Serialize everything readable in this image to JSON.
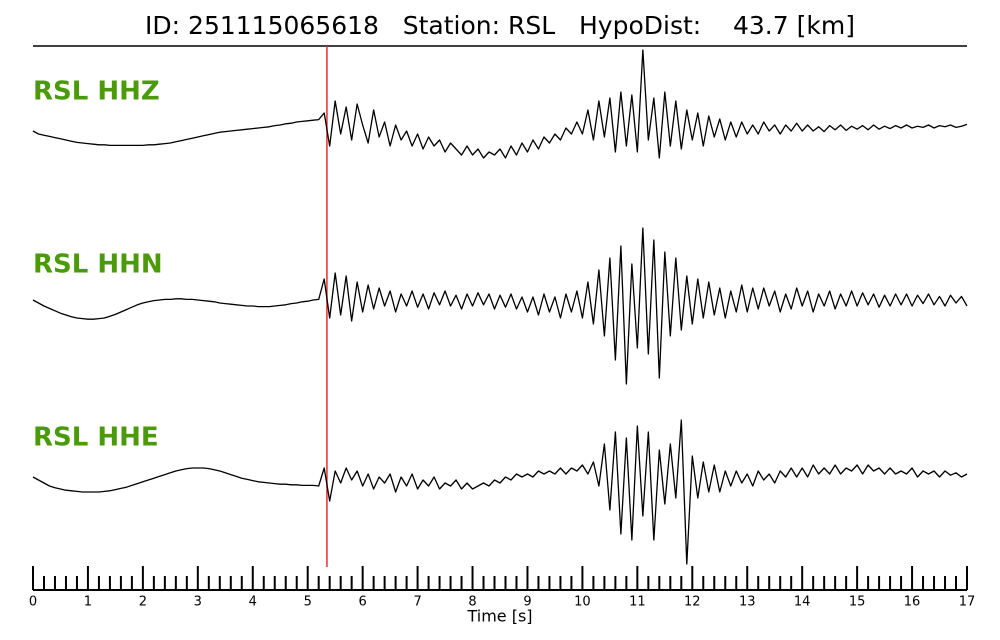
{
  "chart_data": {
    "type": "line",
    "title": "ID: 251115065618   Station: RSL   HypoDist:    43.7 [km]",
    "xlabel": "Time [s]",
    "xlim": [
      0,
      17
    ],
    "xticks": [
      0,
      1,
      2,
      3,
      4,
      5,
      6,
      7,
      8,
      9,
      10,
      11,
      12,
      13,
      14,
      15,
      16,
      17
    ],
    "xminorticks": [
      0.2,
      0.4,
      0.6,
      0.8,
      1.2,
      1.4,
      1.6,
      1.8,
      2.2,
      2.4,
      2.6,
      2.8,
      3.2,
      3.4,
      3.6,
      3.8,
      4.2,
      4.4,
      4.6,
      4.8,
      5.2,
      5.4,
      5.6,
      5.8,
      6.2,
      6.4,
      6.6,
      6.8,
      7.2,
      7.4,
      7.6,
      7.8,
      8.2,
      8.4,
      8.6,
      8.8,
      9.2,
      9.4,
      9.6,
      9.8,
      10.2,
      10.4,
      10.6,
      10.8,
      11.2,
      11.4,
      11.6,
      11.8,
      12.2,
      12.4,
      12.6,
      12.8,
      13.2,
      13.4,
      13.6,
      13.8,
      14.2,
      14.4,
      14.6,
      14.8,
      15.2,
      15.4,
      15.6,
      15.8,
      16.2,
      16.4,
      16.6,
      16.8
    ],
    "pick": {
      "value": 5.35,
      "color": "#e8302a"
    },
    "label_color": "#4a9a0a",
    "x": [
      0,
      0.1,
      0.2,
      0.3,
      0.4,
      0.5,
      0.6,
      0.7,
      0.8,
      0.9,
      1,
      1.1,
      1.2,
      1.3,
      1.4,
      1.5,
      1.6,
      1.7,
      1.8,
      1.9,
      2,
      2.1,
      2.2,
      2.3,
      2.4,
      2.5,
      2.6,
      2.7,
      2.8,
      2.9,
      3,
      3.1,
      3.2,
      3.3,
      3.4,
      3.5,
      3.6,
      3.7,
      3.8,
      3.9,
      4,
      4.1,
      4.2,
      4.3,
      4.4,
      4.5,
      4.6,
      4.7,
      4.8,
      4.9,
      5,
      5.1,
      5.2,
      5.3,
      5.4,
      5.5,
      5.6,
      5.7,
      5.8,
      5.9,
      6,
      6.1,
      6.2,
      6.3,
      6.4,
      6.5,
      6.6,
      6.7,
      6.8,
      6.9,
      7,
      7.1,
      7.2,
      7.3,
      7.4,
      7.5,
      7.6,
      7.7,
      7.8,
      7.9,
      8,
      8.1,
      8.2,
      8.3,
      8.4,
      8.5,
      8.6,
      8.7,
      8.8,
      8.9,
      9,
      9.1,
      9.2,
      9.3,
      9.4,
      9.5,
      9.6,
      9.7,
      9.8,
      9.9,
      10,
      10.1,
      10.2,
      10.3,
      10.4,
      10.5,
      10.6,
      10.7,
      10.8,
      10.9,
      11,
      11.1,
      11.2,
      11.3,
      11.4,
      11.5,
      11.6,
      11.7,
      11.8,
      11.9,
      12,
      12.1,
      12.2,
      12.3,
      12.4,
      12.5,
      12.6,
      12.7,
      12.8,
      12.9,
      13,
      13.1,
      13.2,
      13.3,
      13.4,
      13.5,
      13.6,
      13.7,
      13.8,
      13.9,
      14,
      14.1,
      14.2,
      14.3,
      14.4,
      14.5,
      14.6,
      14.7,
      14.8,
      14.9,
      15,
      15.1,
      15.2,
      15.3,
      15.4,
      15.5,
      15.6,
      15.7,
      15.8,
      15.9,
      16,
      16.1,
      16.2,
      16.3,
      16.4,
      16.5,
      16.6,
      16.7,
      16.8,
      16.9,
      17
    ],
    "series": [
      {
        "name": "RSL HHZ",
        "color": "#000000",
        "ylim": [
          -1.5,
          1.5
        ],
        "values": [
          -0.05,
          -0.1,
          -0.12,
          -0.14,
          -0.16,
          -0.18,
          -0.2,
          -0.22,
          -0.24,
          -0.25,
          -0.26,
          -0.27,
          -0.28,
          -0.28,
          -0.29,
          -0.29,
          -0.29,
          -0.29,
          -0.29,
          -0.29,
          -0.29,
          -0.28,
          -0.28,
          -0.27,
          -0.26,
          -0.25,
          -0.23,
          -0.21,
          -0.19,
          -0.17,
          -0.15,
          -0.13,
          -0.11,
          -0.09,
          -0.07,
          -0.06,
          -0.05,
          -0.04,
          -0.03,
          -0.02,
          -0.01,
          0,
          0.01,
          0.02,
          0.04,
          0.05,
          0.07,
          0.08,
          0.1,
          0.11,
          0.12,
          0.13,
          0.14,
          0.25,
          -0.3,
          0.45,
          -0.1,
          0.35,
          -0.2,
          0.4,
          0.05,
          -0.25,
          0.3,
          -0.15,
          0.1,
          -0.3,
          0.05,
          -0.2,
          -0.05,
          -0.3,
          -0.1,
          -0.35,
          -0.15,
          -0.3,
          -0.2,
          -0.4,
          -0.25,
          -0.35,
          -0.45,
          -0.3,
          -0.45,
          -0.35,
          -0.5,
          -0.4,
          -0.45,
          -0.35,
          -0.5,
          -0.3,
          -0.45,
          -0.25,
          -0.4,
          -0.2,
          -0.35,
          -0.15,
          -0.25,
          -0.1,
          -0.2,
          0,
          -0.1,
          0.1,
          -0.1,
          0.3,
          -0.2,
          0.45,
          -0.15,
          0.5,
          -0.4,
          0.6,
          -0.3,
          0.55,
          -0.4,
          1.3,
          -0.2,
          0.5,
          -0.5,
          0.6,
          -0.3,
          0.45,
          -0.35,
          0.3,
          -0.2,
          0.25,
          -0.3,
          0.2,
          -0.15,
          0.15,
          -0.2,
          0.1,
          -0.15,
          0.1,
          -0.1,
          0.05,
          -0.1,
          0.1,
          -0.05,
          0.05,
          -0.1,
          0.05,
          -0.05,
          0.08,
          -0.05,
          0.05,
          -0.05,
          0.02,
          -0.06,
          0.04,
          -0.03,
          0.05,
          -0.04,
          0.03,
          -0.02,
          0.04,
          -0.03,
          0.05,
          -0.02,
          0.03,
          -0.01,
          0.04,
          0,
          0.05,
          0,
          0.03,
          0.01,
          0.05,
          0,
          0.04,
          0.02,
          0.05,
          0.01,
          0.03,
          0.06
        ]
      },
      {
        "name": "RSL HHN",
        "color": "#000000",
        "ylim": [
          -1.5,
          1.5
        ],
        "values": [
          0,
          -0.05,
          -0.1,
          -0.14,
          -0.18,
          -0.22,
          -0.25,
          -0.28,
          -0.3,
          -0.31,
          -0.32,
          -0.32,
          -0.31,
          -0.3,
          -0.27,
          -0.24,
          -0.2,
          -0.16,
          -0.12,
          -0.08,
          -0.05,
          -0.03,
          -0.01,
          0,
          0.01,
          0.01,
          0.02,
          0.02,
          0.01,
          0.01,
          0,
          -0.01,
          -0.02,
          -0.03,
          -0.05,
          -0.06,
          -0.07,
          -0.08,
          -0.09,
          -0.1,
          -0.1,
          -0.11,
          -0.11,
          -0.11,
          -0.1,
          -0.09,
          -0.08,
          -0.06,
          -0.05,
          -0.03,
          -0.02,
          0,
          0.01,
          0.35,
          -0.3,
          0.45,
          -0.25,
          0.4,
          -0.35,
          0.3,
          -0.2,
          0.25,
          -0.15,
          0.2,
          -0.1,
          0.15,
          -0.2,
          0.1,
          -0.1,
          0.15,
          -0.12,
          0.1,
          -0.15,
          0.12,
          -0.08,
          0.15,
          -0.1,
          0.08,
          -0.15,
          0.1,
          -0.1,
          0.12,
          -0.08,
          0.1,
          -0.15,
          0.08,
          -0.12,
          0.1,
          -0.15,
          0.05,
          -0.2,
          0.05,
          -0.25,
          0.1,
          -0.2,
          0.05,
          -0.3,
          0.1,
          -0.2,
          0.15,
          -0.3,
          0.3,
          -0.4,
          0.5,
          -0.6,
          0.7,
          -1,
          0.9,
          -1.4,
          0.6,
          -0.8,
          1.2,
          -0.9,
          1,
          -1.3,
          0.8,
          -0.6,
          0.7,
          -0.5,
          0.4,
          -0.4,
          0.35,
          -0.3,
          0.3,
          -0.25,
          0.2,
          -0.3,
          0.15,
          -0.2,
          0.25,
          -0.2,
          0.2,
          -0.15,
          0.2,
          -0.1,
          0.15,
          -0.2,
          0.1,
          -0.15,
          0.2,
          -0.1,
          0.15,
          -0.2,
          0.1,
          -0.1,
          0.15,
          -0.15,
          0.1,
          -0.1,
          0.15,
          -0.1,
          0.12,
          -0.08,
          0.1,
          -0.12,
          0.08,
          -0.1,
          0.1,
          -0.08,
          0.1,
          -0.1,
          0.08,
          -0.06,
          0.1,
          -0.08,
          0.06,
          -0.1,
          0.08,
          -0.05,
          0.06,
          -0.1
        ]
      },
      {
        "name": "RSL HHE",
        "color": "#000000",
        "ylim": [
          -1.5,
          1.5
        ],
        "values": [
          0.05,
          0,
          -0.05,
          -0.1,
          -0.13,
          -0.15,
          -0.17,
          -0.18,
          -0.19,
          -0.2,
          -0.2,
          -0.2,
          -0.2,
          -0.19,
          -0.18,
          -0.16,
          -0.14,
          -0.12,
          -0.09,
          -0.06,
          -0.03,
          0,
          0.03,
          0.06,
          0.09,
          0.12,
          0.15,
          0.17,
          0.19,
          0.2,
          0.2,
          0.2,
          0.19,
          0.17,
          0.15,
          0.12,
          0.09,
          0.06,
          0.03,
          0.01,
          -0.01,
          -0.03,
          -0.04,
          -0.05,
          -0.06,
          -0.07,
          -0.07,
          -0.08,
          -0.08,
          -0.09,
          -0.09,
          -0.09,
          -0.1,
          0.2,
          -0.35,
          0.15,
          -0.05,
          0.2,
          0,
          0.15,
          -0.1,
          0.1,
          -0.15,
          0.05,
          -0.05,
          0.1,
          -0.2,
          0.05,
          -0.1,
          0.1,
          -0.15,
          0,
          -0.1,
          0.05,
          -0.15,
          -0.05,
          -0.1,
          0,
          -0.15,
          -0.05,
          -0.15,
          -0.1,
          -0.05,
          -0.1,
          0,
          -0.05,
          0.05,
          0,
          0.1,
          0.05,
          0.1,
          0.05,
          0.15,
          0.1,
          0.15,
          0.1,
          0.2,
          0.1,
          0.2,
          0.15,
          0.25,
          0.1,
          0.3,
          -0.1,
          0.6,
          -0.5,
          0.8,
          -0.9,
          0.7,
          -1,
          0.9,
          -0.6,
          0.8,
          -1,
          0.5,
          -0.4,
          0.6,
          -0.3,
          1,
          -1.4,
          0.4,
          -0.3,
          0.3,
          -0.2,
          0.25,
          -0.2,
          0.15,
          -0.1,
          0.15,
          -0.05,
          0.1,
          -0.1,
          0.15,
          0,
          0.1,
          -0.05,
          0.15,
          0.05,
          0.2,
          0.05,
          0.2,
          0.05,
          0.25,
          0.1,
          0.2,
          0.1,
          0.25,
          0.1,
          0.2,
          0.15,
          0.25,
          0.1,
          0.25,
          0.15,
          0.2,
          0.1,
          0.2,
          0.1,
          0.15,
          0.1,
          0.2,
          0.05,
          0.15,
          0.1,
          0.15,
          0.05,
          0.15,
          0.08,
          0.12,
          0.05,
          0.1
        ]
      }
    ]
  }
}
